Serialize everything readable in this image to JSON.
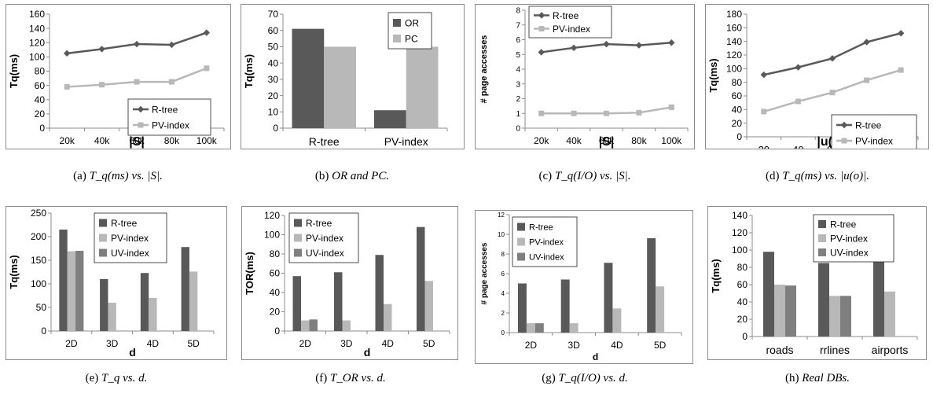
{
  "colors": {
    "rtree": "#595959",
    "pv": "#b8b8b8",
    "uv": "#7f7f7f",
    "axis": "#8c8c8c"
  },
  "captions": [
    {
      "label": "(a)",
      "math": "T_q(ms) vs. |S|."
    },
    {
      "label": "(b)",
      "text": "OR and PC."
    },
    {
      "label": "(c)",
      "math": "T_q(I/O) vs. |S|."
    },
    {
      "label": "(d)",
      "math": "T_q(ms) vs. |u(o)|."
    },
    {
      "label": "(e)",
      "math": "T_q vs. d."
    },
    {
      "label": "(f)",
      "math": "T_OR vs. d."
    },
    {
      "label": "(g)",
      "math": "T_q(I/O) vs. d."
    },
    {
      "label": "(h)",
      "text": "Real DBs."
    }
  ],
  "chart_data": [
    {
      "id": "a",
      "type": "line",
      "categories": [
        "20k",
        "40k",
        "60k",
        "80k",
        "100k"
      ],
      "ylabel": "Tq(ms)",
      "xlabel": "|S|",
      "ylim": [
        0,
        160
      ],
      "yticks": [
        0,
        20,
        40,
        60,
        80,
        100,
        120,
        140,
        160
      ],
      "legend_position": "bottom-right",
      "series": [
        {
          "name": "R-tree",
          "values": [
            105,
            111,
            118,
            117,
            134
          ]
        },
        {
          "name": "PV-index",
          "values": [
            58,
            61,
            65,
            65,
            84
          ]
        }
      ]
    },
    {
      "id": "b",
      "type": "bar",
      "categories": [
        "R-tree",
        "PV-index"
      ],
      "ylabel": "Tq(ms)",
      "xlabel": "",
      "ylim": [
        0,
        70
      ],
      "yticks": [
        0,
        10,
        20,
        30,
        40,
        50,
        60,
        70
      ],
      "legend_position": "top-right",
      "series": [
        {
          "name": "OR",
          "values": [
            61,
            11
          ]
        },
        {
          "name": "PC",
          "values": [
            50,
            50
          ]
        }
      ]
    },
    {
      "id": "c",
      "type": "line",
      "categories": [
        "20k",
        "40k",
        "60k",
        "80k",
        "100k"
      ],
      "ylabel": "# page accesses",
      "xlabel": "|S|",
      "ylim": [
        0,
        8
      ],
      "yticks": [
        0,
        1,
        2,
        3,
        4,
        5,
        6,
        7,
        8
      ],
      "legend_position": "top-left",
      "series": [
        {
          "name": "R-tree",
          "values": [
            5.15,
            5.45,
            5.7,
            5.62,
            5.8
          ]
        },
        {
          "name": "PV-index",
          "values": [
            1.0,
            1.0,
            1.0,
            1.05,
            1.42
          ]
        }
      ]
    },
    {
      "id": "d",
      "type": "line",
      "categories": [
        "20",
        "40",
        "60",
        "80",
        "100"
      ],
      "ylabel": "Tq(ms)",
      "xlabel": "|u(o)|",
      "ylim": [
        0,
        180
      ],
      "yticks": [
        0,
        20,
        40,
        60,
        80,
        100,
        120,
        140,
        160,
        180
      ],
      "legend_position": "bottom-right",
      "series": [
        {
          "name": "R-tree",
          "values": [
            91,
            102,
            115,
            139,
            152
          ]
        },
        {
          "name": "PV-index",
          "values": [
            37,
            52,
            65,
            83,
            98
          ]
        }
      ]
    },
    {
      "id": "e",
      "type": "bar",
      "categories": [
        "2D",
        "3D",
        "4D",
        "5D"
      ],
      "ylabel": "Tq(ms)",
      "xlabel": "d",
      "ylim": [
        0,
        250
      ],
      "yticks": [
        0,
        50,
        100,
        150,
        200,
        250
      ],
      "legend_position": "top-right",
      "series": [
        {
          "name": "R-tree",
          "values": [
            215,
            110,
            123,
            178
          ]
        },
        {
          "name": "PV-index",
          "values": [
            169,
            60,
            70,
            126
          ]
        },
        {
          "name": "UV-index",
          "values": [
            170,
            null,
            null,
            null
          ]
        }
      ]
    },
    {
      "id": "f",
      "type": "bar",
      "categories": [
        "2D",
        "3D",
        "4D",
        "5D"
      ],
      "ylabel": "TOR(ms)",
      "xlabel": "d",
      "ylim": [
        0,
        120
      ],
      "yticks": [
        0,
        20,
        40,
        60,
        80,
        100,
        120
      ],
      "legend_position": "top-left",
      "series": [
        {
          "name": "R-tree",
          "values": [
            57,
            61,
            79,
            108
          ]
        },
        {
          "name": "PV-index",
          "values": [
            11,
            11,
            28,
            52
          ]
        },
        {
          "name": "UV-index",
          "values": [
            12,
            null,
            null,
            null
          ]
        }
      ]
    },
    {
      "id": "g",
      "type": "bar",
      "categories": [
        "2D",
        "3D",
        "4D",
        "5D"
      ],
      "ylabel": "# page accesses",
      "xlabel": "d",
      "ylim": [
        0,
        12
      ],
      "yticks": [
        0,
        2,
        4,
        6,
        8,
        10,
        12
      ],
      "legend_position": "top-left",
      "series": [
        {
          "name": "R-tree",
          "values": [
            5.0,
            5.4,
            7.1,
            9.6
          ]
        },
        {
          "name": "PV-index",
          "values": [
            0.95,
            0.95,
            2.45,
            4.7
          ]
        },
        {
          "name": "UV-index",
          "values": [
            0.95,
            null,
            null,
            null
          ]
        }
      ]
    },
    {
      "id": "h",
      "type": "bar",
      "categories": [
        "roads",
        "rrlines",
        "airports"
      ],
      "ylabel": "Tq(ms)",
      "xlabel": "",
      "ylim": [
        0,
        140
      ],
      "yticks": [
        0,
        20,
        40,
        60,
        80,
        100,
        120,
        140
      ],
      "legend_position": "top-right",
      "series": [
        {
          "name": "R-tree",
          "values": [
            98,
            85,
            89
          ]
        },
        {
          "name": "PV-index",
          "values": [
            60,
            47,
            52
          ]
        },
        {
          "name": "UV-index",
          "values": [
            59,
            47,
            null
          ]
        }
      ]
    }
  ]
}
